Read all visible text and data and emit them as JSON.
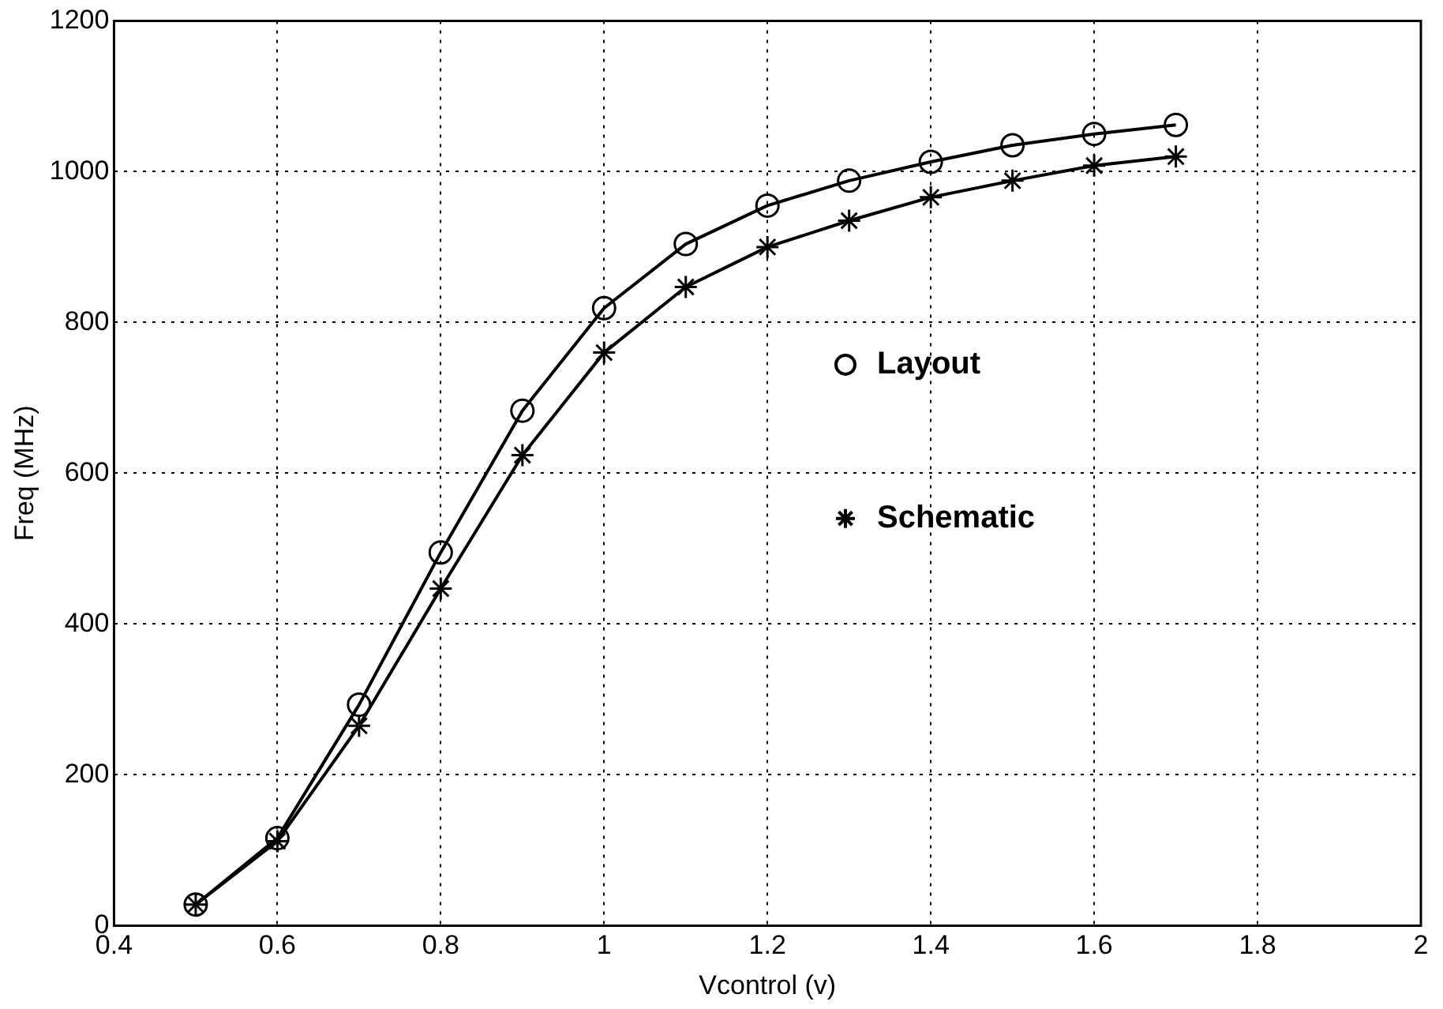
{
  "chart_data": {
    "type": "line",
    "xlabel": "Vcontrol (v)",
    "ylabel": "Freq (MHz)",
    "x": [
      0.5,
      0.6,
      0.7,
      0.8,
      0.9,
      1.0,
      1.1,
      1.2,
      1.3,
      1.4,
      1.5,
      1.6,
      1.7
    ],
    "series": [
      {
        "name": "Layout",
        "color": "#000000",
        "marker": "circle",
        "values": [
          28,
          116,
          293,
          495,
          683,
          819,
          904,
          955,
          988,
          1013,
          1035,
          1050,
          1062
        ]
      },
      {
        "name": "Schematic",
        "color": "#000000",
        "marker": "cross",
        "values": [
          28,
          112,
          265,
          447,
          624,
          760,
          847,
          900,
          935,
          966,
          988,
          1008,
          1020
        ]
      }
    ],
    "xlim": [
      0.4,
      2
    ],
    "xticks": [
      0.4,
      0.6,
      0.8,
      1,
      1.2,
      1.4,
      1.6,
      1.8,
      2
    ],
    "ylim": [
      0,
      1200
    ],
    "yticks": [
      0,
      200,
      400,
      600,
      800,
      1000,
      1200
    ],
    "grid": true,
    "legend": "right",
    "line_style": "solid"
  }
}
